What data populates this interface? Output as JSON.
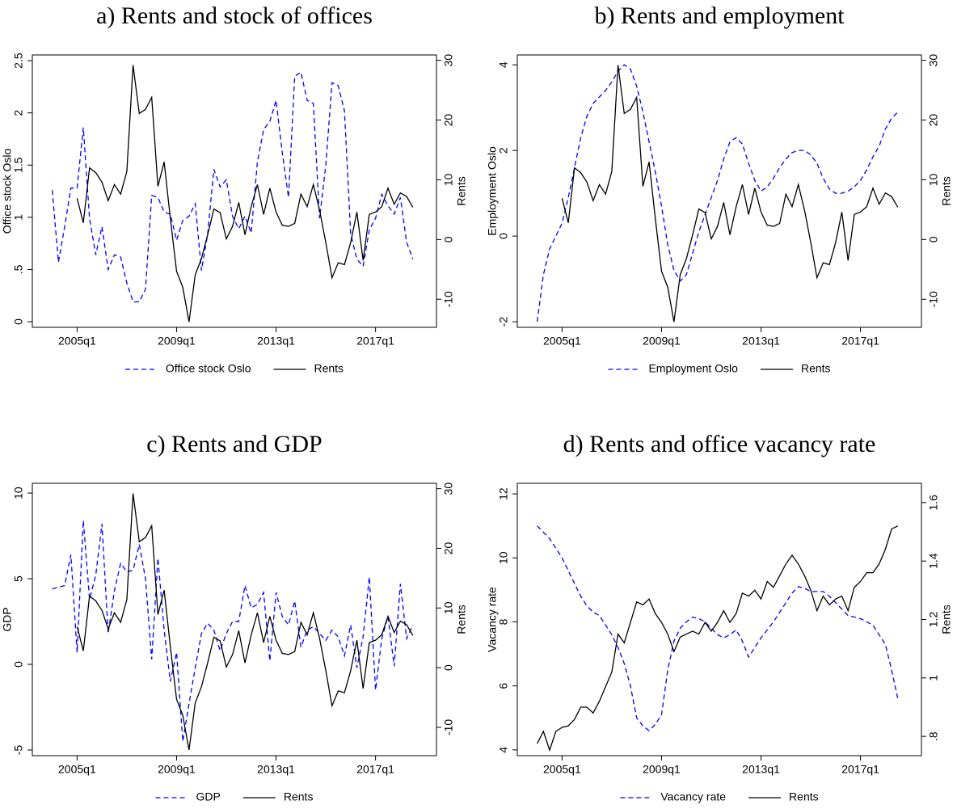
{
  "chart_data": [
    {
      "type": "line",
      "title": "a) Rents and stock of offices",
      "ylabel": "Office stock Oslo",
      "y2label": "Rents",
      "x": [
        2004,
        2004.25,
        2004.5,
        2004.75,
        2005,
        2005.25,
        2005.5,
        2005.75,
        2006,
        2006.25,
        2006.5,
        2006.75,
        2007,
        2007.25,
        2007.5,
        2007.75,
        2008,
        2008.25,
        2008.5,
        2008.75,
        2009,
        2009.25,
        2009.5,
        2009.75,
        2010,
        2010.25,
        2010.5,
        2010.75,
        2011,
        2011.25,
        2011.5,
        2011.75,
        2012,
        2012.25,
        2012.5,
        2012.75,
        2013,
        2013.25,
        2013.5,
        2013.75,
        2014,
        2014.25,
        2014.5,
        2014.75,
        2015,
        2015.25,
        2015.5,
        2015.75,
        2016,
        2016.25,
        2016.5,
        2016.75,
        2017,
        2017.25,
        2017.5,
        2017.75,
        2018,
        2018.25,
        2018.5
      ],
      "xlim": [
        2003.2,
        2019.45
      ],
      "xticks": [
        {
          "value": 2005,
          "label": "2005q1"
        },
        {
          "value": 2009,
          "label": "2009q1"
        },
        {
          "value": 2013,
          "label": "2013q1"
        },
        {
          "value": 2017,
          "label": "2017q1"
        }
      ],
      "ylim": [
        -0.054,
        2.555
      ],
      "yticks": [
        0,
        {
          "value": 0.5,
          "label": ".5"
        },
        1,
        1.5,
        2,
        2.5
      ],
      "y2lim": [
        -14.7,
        30.9
      ],
      "y2ticks": [
        -10,
        0,
        10,
        20,
        30
      ],
      "series": [
        {
          "name": "Office stock Oslo",
          "color": "#0000ff",
          "dash": true,
          "values": [
            1.26,
            0.57,
            0.91,
            1.28,
            1.28,
            1.86,
            0.99,
            0.64,
            0.91,
            0.5,
            0.64,
            0.62,
            0.37,
            0.19,
            0.19,
            0.31,
            1.21,
            1.19,
            1.05,
            1.03,
            0.78,
            0.97,
            1.01,
            1.13,
            0.49,
            0.84,
            1.46,
            1.29,
            1.36,
            1.01,
            0.89,
            1.01,
            0.85,
            1.53,
            1.84,
            1.92,
            2.12,
            1.62,
            1.19,
            2.35,
            2.39,
            2.12,
            2.09,
            0.99,
            1.5,
            2.29,
            2.26,
            2.02,
            0.84,
            0.6,
            0.53,
            0.88,
            0.99,
            1.22,
            1.11,
            1.03,
            1.19,
            0.76,
            0.6
          ]
        },
        {
          "name": "Rents",
          "color": "#000000",
          "dash": false,
          "axis": "y2",
          "values": [
            null,
            null,
            null,
            null,
            6.9,
            2.8,
            12,
            11.2,
            9.6,
            6.5,
            9.2,
            7.6,
            11.4,
            29.2,
            21.1,
            21.8,
            23.8,
            8.9,
            13,
            3.5,
            -5.3,
            -8,
            -13.8,
            -5.9,
            -3.2,
            0.8,
            5.1,
            4.5,
            0.1,
            2.2,
            6.2,
            0.8,
            5.5,
            9.2,
            4.2,
            8.6,
            4.6,
            2.4,
            2.2,
            2.7,
            7.6,
            5.5,
            9.2,
            4.9,
            -0.5,
            -6.4,
            -3.9,
            -4.2,
            -0.5,
            4.6,
            -3.5,
            4.2,
            4.6,
            5.5,
            8.6,
            5.9,
            7.8,
            7.2,
            5.4
          ]
        }
      ]
    },
    {
      "type": "line",
      "title": "b) Rents and employment",
      "ylabel": "Employment Oslo",
      "y2label": "Rents",
      "x": [
        2004,
        2004.25,
        2004.5,
        2004.75,
        2005,
        2005.25,
        2005.5,
        2005.75,
        2006,
        2006.25,
        2006.5,
        2006.75,
        2007,
        2007.25,
        2007.5,
        2007.75,
        2008,
        2008.25,
        2008.5,
        2008.75,
        2009,
        2009.25,
        2009.5,
        2009.75,
        2010,
        2010.25,
        2010.5,
        2010.75,
        2011,
        2011.25,
        2011.5,
        2011.75,
        2012,
        2012.25,
        2012.5,
        2012.75,
        2013,
        2013.25,
        2013.5,
        2013.75,
        2014,
        2014.25,
        2014.5,
        2014.75,
        2015,
        2015.25,
        2015.5,
        2015.75,
        2016,
        2016.25,
        2016.5,
        2016.75,
        2017,
        2017.25,
        2017.5,
        2017.75,
        2018,
        2018.25,
        2018.5
      ],
      "xlim": [
        2003.2,
        2019.45
      ],
      "xticks": [
        {
          "value": 2005,
          "label": "2005q1"
        },
        {
          "value": 2009,
          "label": "2009q1"
        },
        {
          "value": 2013,
          "label": "2013q1"
        },
        {
          "value": 2017,
          "label": "2017q1"
        }
      ],
      "ylim": [
        -2.13,
        4.23
      ],
      "yticks": [
        -2,
        0,
        2,
        4
      ],
      "y2lim": [
        -14.7,
        30.9
      ],
      "y2ticks": [
        -10,
        0,
        10,
        20,
        30
      ],
      "series": [
        {
          "name": "Employment Oslo",
          "color": "#0000ff",
          "dash": true,
          "values": [
            -2.0,
            -0.9,
            -0.3,
            0.0,
            0.3,
            0.9,
            1.6,
            2.3,
            2.8,
            3.1,
            3.25,
            3.4,
            3.6,
            3.85,
            4.0,
            3.9,
            3.5,
            2.9,
            2.2,
            1.5,
            0.7,
            -0.2,
            -0.8,
            -1.05,
            -0.9,
            -0.4,
            0.1,
            0.5,
            0.9,
            1.3,
            1.8,
            2.2,
            2.3,
            2.15,
            1.7,
            1.3,
            1.05,
            1.15,
            1.35,
            1.6,
            1.8,
            1.95,
            2.0,
            2.0,
            1.9,
            1.7,
            1.35,
            1.1,
            1.0,
            1.0,
            1.05,
            1.15,
            1.3,
            1.55,
            1.85,
            2.1,
            2.5,
            2.75,
            2.9
          ]
        },
        {
          "name": "Rents",
          "color": "#000000",
          "dash": false,
          "axis": "y2",
          "values": [
            null,
            null,
            null,
            null,
            6.9,
            2.8,
            12,
            11.2,
            9.6,
            6.5,
            9.2,
            7.6,
            11.4,
            29.2,
            21.1,
            21.8,
            23.8,
            8.9,
            13,
            3.5,
            -5.3,
            -8,
            -13.8,
            -5.9,
            -3.2,
            0.8,
            5.1,
            4.5,
            0.1,
            2.2,
            6.2,
            0.8,
            5.5,
            9.2,
            4.2,
            8.6,
            4.6,
            2.4,
            2.2,
            2.7,
            7.6,
            5.5,
            9.2,
            4.9,
            -0.5,
            -6.4,
            -3.9,
            -4.2,
            -0.5,
            4.6,
            -3.5,
            4.2,
            4.6,
            5.5,
            8.6,
            5.9,
            7.8,
            7.2,
            5.4
          ]
        }
      ]
    },
    {
      "type": "line",
      "title": "c) Rents and GDP",
      "ylabel": "GDP",
      "y2label": "Rents",
      "x": [
        2004,
        2004.25,
        2004.5,
        2004.75,
        2005,
        2005.25,
        2005.5,
        2005.75,
        2006,
        2006.25,
        2006.5,
        2006.75,
        2007,
        2007.25,
        2007.5,
        2007.75,
        2008,
        2008.25,
        2008.5,
        2008.75,
        2009,
        2009.25,
        2009.5,
        2009.75,
        2010,
        2010.25,
        2010.5,
        2010.75,
        2011,
        2011.25,
        2011.5,
        2011.75,
        2012,
        2012.25,
        2012.5,
        2012.75,
        2013,
        2013.25,
        2013.5,
        2013.75,
        2014,
        2014.25,
        2014.5,
        2014.75,
        2015,
        2015.25,
        2015.5,
        2015.75,
        2016,
        2016.25,
        2016.5,
        2016.75,
        2017,
        2017.25,
        2017.5,
        2017.75,
        2018,
        2018.25,
        2018.5
      ],
      "xlim": [
        2003.2,
        2019.45
      ],
      "xticks": [
        {
          "value": 2005,
          "label": "2005q1"
        },
        {
          "value": 2009,
          "label": "2009q1"
        },
        {
          "value": 2013,
          "label": "2013q1"
        },
        {
          "value": 2017,
          "label": "2017q1"
        }
      ],
      "ylim": [
        -5.33,
        10.57
      ],
      "yticks": [
        -5,
        0,
        5,
        10
      ],
      "y2lim": [
        -14.75,
        30.9
      ],
      "y2ticks": [
        -10,
        0,
        10,
        20,
        30
      ],
      "series": [
        {
          "name": "GDP",
          "color": "#0000ff",
          "dash": true,
          "values": [
            4.4,
            4.5,
            4.6,
            6.4,
            0.7,
            8.4,
            3.8,
            5.2,
            8.2,
            1.8,
            4.3,
            5.9,
            5.4,
            5.5,
            7.0,
            5.0,
            0.3,
            6.2,
            2.0,
            -1.0,
            0.7,
            -4.5,
            -2.3,
            -0.2,
            1.8,
            2.4,
            2.0,
            0.8,
            1.8,
            2.5,
            2.5,
            4.6,
            3.3,
            3.5,
            4.2,
            0.2,
            4.2,
            2.8,
            2.3,
            3.7,
            1.0,
            2.0,
            2.2,
            1.8,
            1.4,
            2.0,
            1.6,
            0.5,
            2.3,
            -0.2,
            1.6,
            5.1,
            -1.5,
            1.5,
            2.8,
            -0.1,
            4.7,
            1.5,
            2.3
          ]
        },
        {
          "name": "Rents",
          "color": "#000000",
          "dash": false,
          "axis": "y2",
          "values": [
            null,
            null,
            null,
            null,
            6.9,
            2.8,
            12,
            11.2,
            9.6,
            6.5,
            9.2,
            7.6,
            11.4,
            29.2,
            21.1,
            21.8,
            23.8,
            8.9,
            13,
            3.5,
            -5.3,
            -8,
            -13.8,
            -5.9,
            -3.2,
            0.8,
            5.1,
            4.5,
            0.1,
            2.2,
            6.2,
            0.8,
            5.5,
            9.2,
            4.2,
            8.6,
            4.6,
            2.4,
            2.2,
            2.7,
            7.6,
            5.5,
            9.2,
            4.9,
            -0.5,
            -6.4,
            -3.9,
            -4.2,
            -0.5,
            4.6,
            -3.5,
            4.2,
            4.6,
            5.5,
            8.6,
            5.9,
            7.8,
            7.2,
            5.4
          ]
        }
      ]
    },
    {
      "type": "line",
      "title": "d) Rents and office vacancy rate",
      "ylabel": "Vacancy rate",
      "y2label": "Rents",
      "x": [
        2004,
        2004.25,
        2004.5,
        2004.75,
        2005,
        2005.25,
        2005.5,
        2005.75,
        2006,
        2006.25,
        2006.5,
        2006.75,
        2007,
        2007.25,
        2007.5,
        2007.75,
        2008,
        2008.25,
        2008.5,
        2008.75,
        2009,
        2009.25,
        2009.5,
        2009.75,
        2010,
        2010.25,
        2010.5,
        2010.75,
        2011,
        2011.25,
        2011.5,
        2011.75,
        2012,
        2012.25,
        2012.5,
        2012.75,
        2013,
        2013.25,
        2013.5,
        2013.75,
        2014,
        2014.25,
        2014.5,
        2014.75,
        2015,
        2015.25,
        2015.5,
        2015.75,
        2016,
        2016.25,
        2016.5,
        2016.75,
        2017,
        2017.25,
        2017.5,
        2017.75,
        2018,
        2018.25,
        2018.5
      ],
      "xlim": [
        2003.2,
        2019.45
      ],
      "xticks": [
        {
          "value": 2005,
          "label": "2005q1"
        },
        {
          "value": 2009,
          "label": "2009q1"
        },
        {
          "value": 2013,
          "label": "2013q1"
        },
        {
          "value": 2017,
          "label": "2017q1"
        }
      ],
      "ylim": [
        3.82,
        12.33
      ],
      "yticks": [
        4,
        6,
        8,
        10,
        12
      ],
      "y2lim": [
        0.734,
        1.666
      ],
      "y2ticks": [
        {
          "value": 0.8,
          "label": ".8"
        },
        1,
        1.2,
        1.4,
        1.6
      ],
      "series": [
        {
          "name": "Vacancy rate",
          "color": "#0000ff",
          "dash": true,
          "values": [
            11.0,
            10.8,
            10.6,
            10.3,
            10.0,
            9.6,
            9.2,
            8.8,
            8.5,
            8.3,
            8.2,
            7.9,
            7.6,
            7.2,
            6.7,
            6.0,
            5.0,
            4.75,
            4.6,
            4.8,
            5.1,
            6.5,
            7.4,
            7.8,
            8.0,
            8.15,
            8.1,
            8.0,
            7.8,
            7.6,
            7.5,
            7.6,
            7.75,
            7.4,
            6.9,
            7.2,
            7.5,
            7.75,
            8.0,
            8.3,
            8.6,
            8.9,
            9.1,
            9.05,
            8.95,
            8.95,
            8.95,
            8.8,
            8.6,
            8.4,
            8.2,
            8.15,
            8.1,
            8.0,
            7.9,
            7.6,
            7.3,
            6.5,
            5.6
          ]
        },
        {
          "name": "Rents",
          "color": "#000000",
          "dash": false,
          "axis": "y2",
          "values": [
            0.775,
            0.817,
            0.753,
            0.817,
            0.831,
            0.836,
            0.858,
            0.9,
            0.9,
            0.88,
            0.92,
            0.97,
            1.02,
            1.15,
            1.12,
            1.19,
            1.26,
            1.25,
            1.27,
            1.22,
            1.19,
            1.15,
            1.09,
            1.14,
            1.15,
            1.16,
            1.15,
            1.19,
            1.16,
            1.19,
            1.23,
            1.19,
            1.22,
            1.29,
            1.28,
            1.3,
            1.27,
            1.33,
            1.31,
            1.35,
            1.39,
            1.42,
            1.39,
            1.35,
            1.3,
            1.23,
            1.28,
            1.25,
            1.27,
            1.28,
            1.23,
            1.31,
            1.33,
            1.36,
            1.36,
            1.39,
            1.44,
            1.51,
            1.52
          ]
        }
      ]
    }
  ]
}
